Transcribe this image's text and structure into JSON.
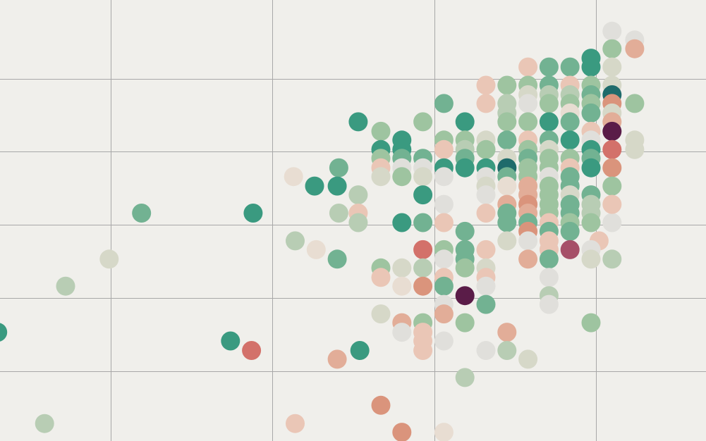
{
  "chart_data": {
    "type": "scatter",
    "title": "",
    "xlabel": "",
    "ylabel": "",
    "grid": true,
    "legend": "none",
    "x_grid": [
      1,
      2,
      3,
      4
    ],
    "y_grid": [
      1,
      2,
      3,
      4,
      5
    ],
    "xlim": [
      0.3145,
      4.6812
    ],
    "ylim": [
      0.0408,
      6.0769
    ],
    "palette": {
      "a": "#3a9a80",
      "b": "#72b292",
      "c": "#9ec4a0",
      "d": "#b8cdb4",
      "e": "#d6d8c8",
      "f": "#e0dfdb",
      "g": "#e8ddd2",
      "h": "#eac6b6",
      "i": "#e2ad98",
      "j": "#da947c",
      "k": "#d3716a",
      "l": "#1f6b6b",
      "m": "#a65068",
      "n": "#5a1c48"
    },
    "points": [
      {
        "x": 4.1,
        "y": 5.65,
        "c": "f"
      },
      {
        "x": 4.24,
        "y": 5.53,
        "c": "f"
      },
      {
        "x": 4.1,
        "y": 5.41,
        "c": "c"
      },
      {
        "x": 4.24,
        "y": 5.41,
        "c": "i"
      },
      {
        "x": 3.97,
        "y": 5.28,
        "c": "a"
      },
      {
        "x": 3.58,
        "y": 5.16,
        "c": "h"
      },
      {
        "x": 3.71,
        "y": 5.16,
        "c": "b"
      },
      {
        "x": 3.84,
        "y": 5.16,
        "c": "b"
      },
      {
        "x": 3.97,
        "y": 5.16,
        "c": "a"
      },
      {
        "x": 4.1,
        "y": 5.16,
        "c": "e"
      },
      {
        "x": 3.32,
        "y": 4.91,
        "c": "h"
      },
      {
        "x": 3.45,
        "y": 4.91,
        "c": "c"
      },
      {
        "x": 3.58,
        "y": 4.91,
        "c": "c"
      },
      {
        "x": 3.71,
        "y": 4.91,
        "c": "b"
      },
      {
        "x": 3.84,
        "y": 4.91,
        "c": "h"
      },
      {
        "x": 3.97,
        "y": 4.91,
        "c": "c"
      },
      {
        "x": 4.1,
        "y": 4.91,
        "c": "e"
      },
      {
        "x": 3.58,
        "y": 4.78,
        "c": "e"
      },
      {
        "x": 3.71,
        "y": 4.78,
        "c": "d"
      },
      {
        "x": 3.84,
        "y": 4.78,
        "c": "d"
      },
      {
        "x": 3.97,
        "y": 4.78,
        "c": "b"
      },
      {
        "x": 4.1,
        "y": 4.78,
        "c": "l"
      },
      {
        "x": 3.06,
        "y": 4.66,
        "c": "b"
      },
      {
        "x": 3.32,
        "y": 4.66,
        "c": "h"
      },
      {
        "x": 3.45,
        "y": 4.66,
        "c": "d"
      },
      {
        "x": 3.58,
        "y": 4.66,
        "c": "f"
      },
      {
        "x": 3.71,
        "y": 4.66,
        "c": "c"
      },
      {
        "x": 3.84,
        "y": 4.66,
        "c": "c"
      },
      {
        "x": 3.97,
        "y": 4.66,
        "c": "c"
      },
      {
        "x": 4.1,
        "y": 4.66,
        "c": "j"
      },
      {
        "x": 4.24,
        "y": 4.66,
        "c": "c"
      },
      {
        "x": 3.45,
        "y": 4.53,
        "c": "d"
      },
      {
        "x": 3.84,
        "y": 4.53,
        "c": "g"
      },
      {
        "x": 3.97,
        "y": 4.53,
        "c": "b"
      },
      {
        "x": 4.1,
        "y": 4.53,
        "c": "e"
      },
      {
        "x": 2.53,
        "y": 4.41,
        "c": "a"
      },
      {
        "x": 2.93,
        "y": 4.41,
        "c": "c"
      },
      {
        "x": 3.19,
        "y": 4.41,
        "c": "a"
      },
      {
        "x": 3.45,
        "y": 4.41,
        "c": "c"
      },
      {
        "x": 3.58,
        "y": 4.41,
        "c": "c"
      },
      {
        "x": 3.71,
        "y": 4.41,
        "c": "a"
      },
      {
        "x": 3.84,
        "y": 4.41,
        "c": "b"
      },
      {
        "x": 4.1,
        "y": 4.41,
        "c": "i"
      },
      {
        "x": 4.1,
        "y": 4.28,
        "c": "f"
      },
      {
        "x": 2.67,
        "y": 4.28,
        "c": "c"
      },
      {
        "x": 3.97,
        "y": 4.28,
        "c": "h"
      },
      {
        "x": 4.1,
        "y": 4.28,
        "c": "n"
      },
      {
        "x": 2.8,
        "y": 4.16,
        "c": "a"
      },
      {
        "x": 3.06,
        "y": 4.16,
        "c": "c"
      },
      {
        "x": 3.19,
        "y": 4.16,
        "c": "c"
      },
      {
        "x": 3.32,
        "y": 4.16,
        "c": "e"
      },
      {
        "x": 3.45,
        "y": 4.16,
        "c": "b"
      },
      {
        "x": 3.58,
        "y": 4.16,
        "c": "h"
      },
      {
        "x": 3.71,
        "y": 4.16,
        "c": "b"
      },
      {
        "x": 3.84,
        "y": 4.16,
        "c": "a"
      },
      {
        "x": 3.97,
        "y": 4.16,
        "c": "f"
      },
      {
        "x": 4.24,
        "y": 4.16,
        "c": "e"
      },
      {
        "x": 2.67,
        "y": 4.03,
        "c": "a"
      },
      {
        "x": 2.8,
        "y": 4.03,
        "c": "a"
      },
      {
        "x": 3.06,
        "y": 4.03,
        "c": "h"
      },
      {
        "x": 3.19,
        "y": 4.03,
        "c": "d"
      },
      {
        "x": 3.32,
        "y": 4.03,
        "c": "c"
      },
      {
        "x": 3.58,
        "y": 4.03,
        "c": "c"
      },
      {
        "x": 3.71,
        "y": 4.03,
        "c": "e"
      },
      {
        "x": 3.97,
        "y": 4.03,
        "c": "a"
      },
      {
        "x": 4.1,
        "y": 4.03,
        "c": "k"
      },
      {
        "x": 4.24,
        "y": 4.03,
        "c": "e"
      },
      {
        "x": 2.67,
        "y": 3.91,
        "c": "c"
      },
      {
        "x": 2.8,
        "y": 3.91,
        "c": "b"
      },
      {
        "x": 2.93,
        "y": 3.91,
        "c": "b"
      },
      {
        "x": 3.19,
        "y": 3.91,
        "c": "b"
      },
      {
        "x": 3.45,
        "y": 3.91,
        "c": "e"
      },
      {
        "x": 3.58,
        "y": 3.91,
        "c": "b"
      },
      {
        "x": 3.71,
        "y": 3.91,
        "c": "c"
      },
      {
        "x": 3.84,
        "y": 3.91,
        "c": "c"
      },
      {
        "x": 3.97,
        "y": 3.91,
        "c": "b"
      },
      {
        "x": 2.41,
        "y": 3.78,
        "c": "b"
      },
      {
        "x": 2.8,
        "y": 3.78,
        "c": "f"
      },
      {
        "x": 2.93,
        "y": 3.78,
        "c": "f"
      },
      {
        "x": 3.06,
        "y": 3.78,
        "c": "a"
      },
      {
        "x": 3.32,
        "y": 3.78,
        "c": "a"
      },
      {
        "x": 3.45,
        "y": 3.78,
        "c": "c"
      },
      {
        "x": 3.58,
        "y": 3.78,
        "c": "c"
      },
      {
        "x": 3.71,
        "y": 3.78,
        "c": "c"
      },
      {
        "x": 3.84,
        "y": 3.78,
        "c": "h"
      },
      {
        "x": 3.97,
        "y": 3.78,
        "c": "a"
      },
      {
        "x": 2.67,
        "y": 3.78,
        "c": "h"
      },
      {
        "x": 3.19,
        "y": 3.78,
        "c": "a"
      },
      {
        "x": 3.45,
        "y": 3.78,
        "c": "l"
      },
      {
        "x": 4.1,
        "y": 3.78,
        "c": "j"
      },
      {
        "x": 2.13,
        "y": 3.66,
        "c": "g"
      },
      {
        "x": 2.67,
        "y": 3.66,
        "c": "e"
      },
      {
        "x": 2.8,
        "y": 3.66,
        "c": "c"
      },
      {
        "x": 2.93,
        "y": 3.66,
        "c": "e"
      },
      {
        "x": 3.06,
        "y": 3.66,
        "c": "f"
      },
      {
        "x": 3.32,
        "y": 3.66,
        "c": "f"
      },
      {
        "x": 3.45,
        "y": 3.66,
        "c": "b"
      },
      {
        "x": 3.58,
        "y": 3.66,
        "c": "c"
      },
      {
        "x": 3.71,
        "y": 3.66,
        "c": "f"
      },
      {
        "x": 3.84,
        "y": 3.66,
        "c": "b"
      },
      {
        "x": 2.26,
        "y": 3.53,
        "c": "a"
      },
      {
        "x": 2.4,
        "y": 3.53,
        "c": "a"
      },
      {
        "x": 3.32,
        "y": 3.53,
        "c": "e"
      },
      {
        "x": 3.45,
        "y": 3.53,
        "c": "g"
      },
      {
        "x": 3.58,
        "y": 3.53,
        "c": "i"
      },
      {
        "x": 3.71,
        "y": 3.53,
        "c": "c"
      },
      {
        "x": 3.84,
        "y": 3.53,
        "c": "b"
      },
      {
        "x": 4.1,
        "y": 3.53,
        "c": "c"
      },
      {
        "x": 2.53,
        "y": 3.41,
        "c": "d"
      },
      {
        "x": 2.93,
        "y": 3.41,
        "c": "a"
      },
      {
        "x": 3.32,
        "y": 3.41,
        "c": "f"
      },
      {
        "x": 3.58,
        "y": 3.41,
        "c": "i"
      },
      {
        "x": 3.71,
        "y": 3.41,
        "c": "c"
      },
      {
        "x": 3.84,
        "y": 3.41,
        "c": "e"
      },
      {
        "x": 3.97,
        "y": 3.41,
        "c": "b"
      },
      {
        "x": 3.06,
        "y": 3.28,
        "c": "f"
      },
      {
        "x": 3.45,
        "y": 3.28,
        "c": "i"
      },
      {
        "x": 3.58,
        "y": 3.28,
        "c": "j"
      },
      {
        "x": 3.71,
        "y": 3.28,
        "c": "c"
      },
      {
        "x": 3.84,
        "y": 3.28,
        "c": "b"
      },
      {
        "x": 3.97,
        "y": 3.28,
        "c": "d"
      },
      {
        "x": 1.19,
        "y": 3.16,
        "c": "b"
      },
      {
        "x": 1.88,
        "y": 3.16,
        "c": "a"
      },
      {
        "x": 2.41,
        "y": 3.16,
        "c": "d"
      },
      {
        "x": 2.53,
        "y": 3.16,
        "c": "h"
      },
      {
        "x": 3.32,
        "y": 3.16,
        "c": "h"
      },
      {
        "x": 3.45,
        "y": 3.16,
        "c": "b"
      },
      {
        "x": 3.58,
        "y": 3.16,
        "c": "i"
      },
      {
        "x": 3.71,
        "y": 3.16,
        "c": "c"
      },
      {
        "x": 3.84,
        "y": 3.16,
        "c": "b"
      },
      {
        "x": 3.97,
        "y": 3.16,
        "c": "d"
      },
      {
        "x": 2.53,
        "y": 3.03,
        "c": "d"
      },
      {
        "x": 2.8,
        "y": 3.03,
        "c": "a"
      },
      {
        "x": 2.93,
        "y": 3.03,
        "c": "b"
      },
      {
        "x": 3.06,
        "y": 3.03,
        "c": "h"
      },
      {
        "x": 3.45,
        "y": 3.03,
        "c": "b"
      },
      {
        "x": 3.58,
        "y": 3.03,
        "c": "b"
      },
      {
        "x": 3.71,
        "y": 3.03,
        "c": "h"
      },
      {
        "x": 3.84,
        "y": 3.03,
        "c": "c"
      },
      {
        "x": 3.97,
        "y": 3.03,
        "c": "c"
      },
      {
        "x": 4.1,
        "y": 3.03,
        "c": "f"
      },
      {
        "x": 4.1,
        "y": 3.28,
        "c": "h"
      },
      {
        "x": 3.19,
        "y": 2.91,
        "c": "b"
      },
      {
        "x": 3.58,
        "y": 2.91,
        "c": "j"
      },
      {
        "x": 3.71,
        "y": 2.91,
        "c": "b"
      },
      {
        "x": 3.84,
        "y": 2.91,
        "c": "b"
      },
      {
        "x": 3.45,
        "y": 2.78,
        "c": "e"
      },
      {
        "x": 3.58,
        "y": 2.78,
        "c": "f"
      },
      {
        "x": 3.71,
        "y": 2.78,
        "c": "h"
      },
      {
        "x": 4.02,
        "y": 2.78,
        "c": "h"
      },
      {
        "x": 2.14,
        "y": 2.78,
        "c": "d"
      },
      {
        "x": 2.93,
        "y": 2.66,
        "c": "k"
      },
      {
        "x": 3.06,
        "y": 2.66,
        "c": "c"
      },
      {
        "x": 3.19,
        "y": 2.66,
        "c": "b"
      },
      {
        "x": 3.32,
        "y": 2.66,
        "c": "h"
      },
      {
        "x": 3.71,
        "y": 2.66,
        "c": "h"
      },
      {
        "x": 3.84,
        "y": 2.66,
        "c": "m"
      },
      {
        "x": 3.97,
        "y": 2.66,
        "c": "f"
      },
      {
        "x": 2.27,
        "y": 2.66,
        "c": "g"
      },
      {
        "x": 3.06,
        "y": 2.53,
        "c": "f"
      },
      {
        "x": 3.19,
        "y": 2.53,
        "c": "b"
      },
      {
        "x": 3.58,
        "y": 2.53,
        "c": "i"
      },
      {
        "x": 3.71,
        "y": 2.53,
        "c": "b"
      },
      {
        "x": 3.97,
        "y": 2.53,
        "c": "e"
      },
      {
        "x": 4.1,
        "y": 2.53,
        "c": "d"
      },
      {
        "x": 0.99,
        "y": 2.53,
        "c": "e"
      },
      {
        "x": 2.4,
        "y": 2.53,
        "c": "b"
      },
      {
        "x": 2.67,
        "y": 2.41,
        "c": "c"
      },
      {
        "x": 2.8,
        "y": 2.41,
        "c": "e"
      },
      {
        "x": 2.93,
        "y": 2.41,
        "c": "d"
      },
      {
        "x": 3.19,
        "y": 2.41,
        "c": "c"
      },
      {
        "x": 3.32,
        "y": 2.41,
        "c": "e"
      },
      {
        "x": 3.71,
        "y": 2.28,
        "c": "f"
      },
      {
        "x": 2.67,
        "y": 2.28,
        "c": "h"
      },
      {
        "x": 3.06,
        "y": 2.28,
        "c": "h"
      },
      {
        "x": 3.32,
        "y": 2.28,
        "c": "h"
      },
      {
        "x": 0.72,
        "y": 2.16,
        "c": "d"
      },
      {
        "x": 2.8,
        "y": 2.16,
        "c": "g"
      },
      {
        "x": 2.93,
        "y": 2.16,
        "c": "j"
      },
      {
        "x": 3.06,
        "y": 2.16,
        "c": "b"
      },
      {
        "x": 3.32,
        "y": 2.16,
        "c": "f"
      },
      {
        "x": 3.19,
        "y": 2.03,
        "c": "n"
      },
      {
        "x": 3.71,
        "y": 2.03,
        "c": "d"
      },
      {
        "x": 3.06,
        "y": 1.91,
        "c": "f"
      },
      {
        "x": 3.32,
        "y": 1.91,
        "c": "b"
      },
      {
        "x": 3.71,
        "y": 1.91,
        "c": "f"
      },
      {
        "x": 2.67,
        "y": 1.78,
        "c": "e"
      },
      {
        "x": 3.06,
        "y": 1.78,
        "c": "i"
      },
      {
        "x": 2.93,
        "y": 1.66,
        "c": "c"
      },
      {
        "x": 3.19,
        "y": 1.66,
        "c": "c"
      },
      {
        "x": 2.8,
        "y": 1.66,
        "c": "i"
      },
      {
        "x": 3.97,
        "y": 1.66,
        "c": "c"
      },
      {
        "x": 2.8,
        "y": 1.53,
        "c": "f"
      },
      {
        "x": 2.93,
        "y": 1.53,
        "c": "h"
      },
      {
        "x": 3.45,
        "y": 1.53,
        "c": "i"
      },
      {
        "x": 0.3,
        "y": 1.53,
        "c": "a"
      },
      {
        "x": 2.93,
        "y": 1.41,
        "c": "h"
      },
      {
        "x": 3.06,
        "y": 1.41,
        "c": "f"
      },
      {
        "x": 1.74,
        "y": 1.41,
        "c": "a"
      },
      {
        "x": 1.87,
        "y": 1.28,
        "c": "k"
      },
      {
        "x": 2.54,
        "y": 1.28,
        "c": "a"
      },
      {
        "x": 2.93,
        "y": 1.28,
        "c": "h"
      },
      {
        "x": 3.32,
        "y": 1.28,
        "c": "f"
      },
      {
        "x": 3.45,
        "y": 1.28,
        "c": "d"
      },
      {
        "x": 2.4,
        "y": 1.16,
        "c": "i"
      },
      {
        "x": 3.58,
        "y": 1.16,
        "c": "e"
      },
      {
        "x": 3.19,
        "y": 0.91,
        "c": "d"
      },
      {
        "x": 2.67,
        "y": 0.53,
        "c": "j"
      },
      {
        "x": 0.59,
        "y": 0.28,
        "c": "d"
      },
      {
        "x": 2.14,
        "y": 0.28,
        "c": "h"
      },
      {
        "x": 2.8,
        "y": 0.16,
        "c": "j"
      },
      {
        "x": 3.06,
        "y": 0.16,
        "c": "g"
      }
    ]
  }
}
